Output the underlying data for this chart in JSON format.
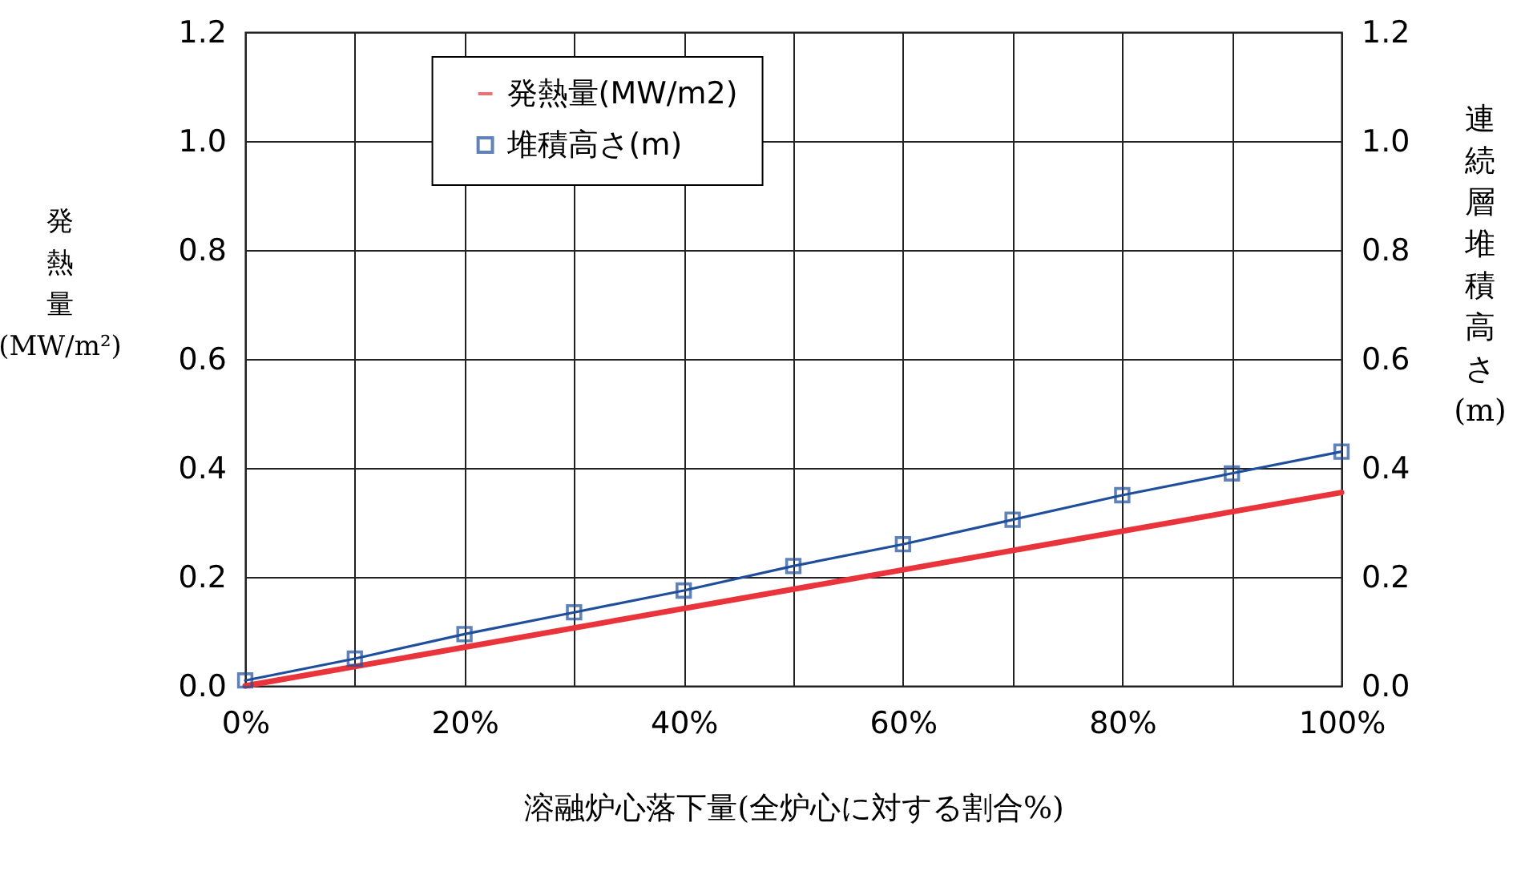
{
  "chart_data": {
    "type": "line",
    "xlabel": "溶融炉心落下量(全炉心に対する割合%)",
    "ylabel": "発熱量 (MW/m²)",
    "y2label": "連続層堆積高さ (m)",
    "xlim": [
      0,
      100
    ],
    "xticks": [
      {
        "value": 0,
        "label": "0%"
      },
      {
        "value": 10,
        "label": null
      },
      {
        "value": 20,
        "label": "20%"
      },
      {
        "value": 30,
        "label": null
      },
      {
        "value": 40,
        "label": "40%"
      },
      {
        "value": 50,
        "label": null
      },
      {
        "value": 60,
        "label": "60%"
      },
      {
        "value": 70,
        "label": null
      },
      {
        "value": 80,
        "label": "80%"
      },
      {
        "value": 90,
        "label": null
      },
      {
        "value": 100,
        "label": "100%"
      }
    ],
    "ylim": [
      0,
      1.2
    ],
    "yticks": [
      {
        "value": 0,
        "label": "0.0"
      },
      {
        "value": 0.2,
        "label": "0.2"
      },
      {
        "value": 0.4,
        "label": "0.4"
      },
      {
        "value": 0.6,
        "label": "0.6"
      },
      {
        "value": 0.8,
        "label": "0.8"
      },
      {
        "value": 1.0,
        "label": "1.0"
      },
      {
        "value": 1.2,
        "label": "1.2"
      }
    ],
    "y2lim": [
      0,
      1.2
    ],
    "y2ticks": [
      {
        "value": 0,
        "label": "0.0"
      },
      {
        "value": 0.2,
        "label": "0.2"
      },
      {
        "value": 0.4,
        "label": "0.4"
      },
      {
        "value": 0.6,
        "label": "0.6"
      },
      {
        "value": 0.8,
        "label": "0.8"
      },
      {
        "value": 1.0,
        "label": "1.0"
      },
      {
        "value": 1.2,
        "label": "1.2"
      }
    ],
    "grid": true,
    "legend": "top",
    "line_style": "solid",
    "series": [
      {
        "name": "発熱量(MW/m2)",
        "color": "#e8343a",
        "marker": "none",
        "x": [
          0,
          100
        ],
        "values": [
          0,
          0.355
        ]
      },
      {
        "name": "堆積高さ(m)",
        "color": "#1f4e9c",
        "marker": "square",
        "axis": "y2",
        "x": [
          0,
          10,
          20,
          30,
          40,
          50,
          60,
          70,
          80,
          90,
          100
        ],
        "values": [
          0.01,
          0.05,
          0.095,
          0.135,
          0.175,
          0.22,
          0.26,
          0.305,
          0.35,
          0.39,
          0.43
        ]
      }
    ]
  }
}
